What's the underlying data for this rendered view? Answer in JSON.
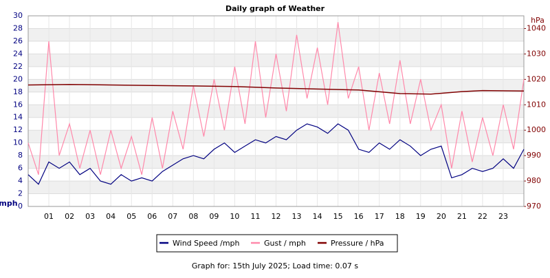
{
  "chart_data": {
    "type": "line",
    "title": "Daily graph of Weather",
    "ylabel": "mph",
    "y2label": "hPa",
    "footer": "Graph for: 15th July 2025; Load time: 0.07 s",
    "x": [
      0,
      0.5,
      1,
      1.5,
      2,
      2.5,
      3,
      3.5,
      4,
      4.5,
      5,
      5.5,
      6,
      6.5,
      7,
      7.5,
      8,
      8.5,
      9,
      9.5,
      10,
      10.5,
      11,
      11.5,
      12,
      12.5,
      13,
      13.5,
      14,
      14.5,
      15,
      15.5,
      16,
      16.5,
      17,
      17.5,
      18,
      18.5,
      19,
      19.5,
      20,
      20.5,
      21,
      21.5,
      22,
      22.5,
      23,
      23.5,
      24
    ],
    "xlim": [
      0,
      24
    ],
    "xticks": [
      {
        "value": 1,
        "label": "01"
      },
      {
        "value": 2,
        "label": "02"
      },
      {
        "value": 3,
        "label": "03"
      },
      {
        "value": 4,
        "label": "04"
      },
      {
        "value": 5,
        "label": "05"
      },
      {
        "value": 6,
        "label": "06"
      },
      {
        "value": 7,
        "label": "07"
      },
      {
        "value": 8,
        "label": "08"
      },
      {
        "value": 9,
        "label": "09"
      },
      10,
      11,
      12,
      13,
      14,
      15,
      16,
      17,
      18,
      19,
      20,
      21,
      22,
      23
    ],
    "ylim": [
      0,
      30
    ],
    "yticks": [
      0,
      2,
      4,
      6,
      8,
      10,
      12,
      14,
      16,
      18,
      20,
      22,
      24,
      26,
      28,
      30
    ],
    "y2lim": [
      970,
      1045
    ],
    "y2ticks": [
      970,
      980,
      990,
      1000,
      1010,
      1020,
      1030,
      1040
    ],
    "grid": true,
    "legend": "bottom",
    "series": [
      {
        "name": "Wind Speed /mph",
        "color": "#000080",
        "values": [
          5,
          3.5,
          7,
          6,
          7,
          5,
          6,
          4,
          3.5,
          5,
          4,
          4.5,
          4,
          5.5,
          6.5,
          7.5,
          8,
          7.5,
          9,
          10,
          8.5,
          9.5,
          10.5,
          10,
          11,
          10.5,
          12,
          13,
          12.5,
          11.5,
          13,
          12,
          9,
          8.5,
          10,
          9,
          10.5,
          9.5,
          8,
          9,
          9.5,
          4.5,
          5,
          6,
          5.5,
          6,
          7.5,
          6,
          9
        ]
      },
      {
        "name": "Gust / mph",
        "color": "#ff88aa",
        "values": [
          10,
          5,
          26,
          8,
          13,
          6,
          12,
          5,
          12,
          6,
          11,
          5,
          14,
          6,
          15,
          9,
          19,
          11,
          20,
          12,
          22,
          13,
          26,
          14,
          24,
          15,
          27,
          17,
          25,
          16,
          29,
          17,
          22,
          12,
          21,
          13,
          23,
          13,
          20,
          12,
          16,
          6,
          15,
          7,
          14,
          8,
          16,
          9,
          20
        ]
      },
      {
        "name": "Pressure / hPa",
        "color": "#800000",
        "axis": "y2",
        "x": [
          0,
          2,
          4,
          6,
          8,
          10,
          12,
          14,
          16,
          18,
          19.5,
          21,
          22,
          24
        ],
        "values": [
          1017.8,
          1018,
          1017.8,
          1017.6,
          1017.4,
          1017.2,
          1016.6,
          1016.2,
          1015.8,
          1014.4,
          1014.2,
          1015.2,
          1015.6,
          1015.4
        ]
      }
    ]
  }
}
